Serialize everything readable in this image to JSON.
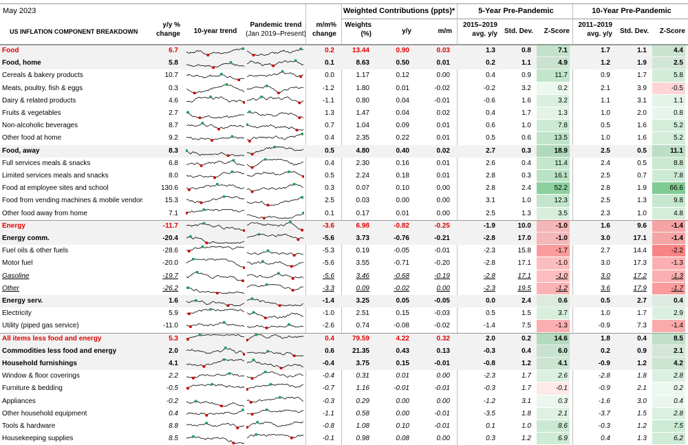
{
  "header": {
    "period": "May 2023",
    "group_weighted": "Weighted Contributions (ppts)*",
    "group_5y": "5-Year Pre-Pandemic",
    "group_10y": "10-Year Pre-Pandemic",
    "col_component": "US INFLATION COMPONENT BREAKDOWN",
    "col_yy": [
      "y/y %",
      "change"
    ],
    "col_trend10": "10-year trend",
    "col_pandemic": [
      "Pandemic trend",
      "(Jan 2019–Present)"
    ],
    "col_mm": [
      "m/m%",
      "change"
    ],
    "col_weights": [
      "Weights",
      "(%)"
    ],
    "col_wyy": "y/y",
    "col_wmm": "m/m",
    "col_5avg": [
      "2015–2019",
      "avg. y/y"
    ],
    "col_5sd": "Std. Dev.",
    "col_5z": "Z-Score",
    "col_10avg": [
      "2011–2019",
      "avg. y/y"
    ],
    "col_10sd": "Std. Dev.",
    "col_10z": "Z-Score"
  },
  "colors": {
    "red_text": "#e00000",
    "band": "#f2f2f2",
    "z_green": "#63be7b",
    "z_red": "#f8696b",
    "spark_red": "#d00000",
    "spark_green": "#1e9e5a"
  },
  "rows": [
    {
      "label": "Food",
      "yy": "6.7",
      "mm": "0.2",
      "w": "13.44",
      "wyy": "0.90",
      "wmm": "0.03",
      "a5": "1.3",
      "s5": "0.8",
      "z5": "7.1",
      "a10": "1.7",
      "s10": "1.1",
      "z10": "4.4",
      "style": "hred"
    },
    {
      "label": "Food, home",
      "yy": "5.8",
      "mm": "0.1",
      "w": "8.63",
      "wyy": "0.50",
      "wmm": "0.01",
      "a5": "0.2",
      "s5": "1.1",
      "z5": "4.9",
      "a10": "1.2",
      "s10": "1.9",
      "z10": "2.5",
      "style": "sub"
    },
    {
      "label": "Cereals & bakery products",
      "yy": "10.7",
      "mm": "0.0",
      "w": "1.17",
      "wyy": "0.12",
      "wmm": "0.00",
      "a5": "0.4",
      "s5": "0.9",
      "z5": "11.7",
      "a10": "0.9",
      "s10": "1.7",
      "z10": "5.8",
      "style": "n"
    },
    {
      "label": "Meats, poultry, fish & eggs",
      "yy": "0.3",
      "mm": "-1.2",
      "w": "1.80",
      "wyy": "0.01",
      "wmm": "-0.02",
      "a5": "-0.2",
      "s5": "3.2",
      "z5": "0.2",
      "a10": "2.1",
      "s10": "3.9",
      "z10": "-0.5",
      "style": "n"
    },
    {
      "label": "Dairy & related products",
      "yy": "4.6",
      "mm": "-1.1",
      "w": "0.80",
      "wyy": "0.04",
      "wmm": "-0.01",
      "a5": "-0.6",
      "s5": "1.6",
      "z5": "3.2",
      "a10": "1.1",
      "s10": "3.1",
      "z10": "1.1",
      "style": "n"
    },
    {
      "label": "Fruits & vegetables",
      "yy": "2.7",
      "mm": "1.3",
      "w": "1.47",
      "wyy": "0.04",
      "wmm": "0.02",
      "a5": "0.4",
      "s5": "1.7",
      "z5": "1.3",
      "a10": "1.0",
      "s10": "2.0",
      "z10": "0.8",
      "style": "n"
    },
    {
      "label": "Non-alcoholic beverages",
      "yy": "8.7",
      "mm": "0.7",
      "w": "1.04",
      "wyy": "0.09",
      "wmm": "0.01",
      "a5": "0.6",
      "s5": "1.0",
      "z5": "7.8",
      "a10": "0.5",
      "s10": "1.6",
      "z10": "5.2",
      "style": "n"
    },
    {
      "label": "Other food at home",
      "yy": "9.2",
      "mm": "0.4",
      "w": "2.35",
      "wyy": "0.22",
      "wmm": "0.01",
      "a5": "0.5",
      "s5": "0.6",
      "z5": "13.5",
      "a10": "1.0",
      "s10": "1.6",
      "z10": "5.2",
      "style": "n"
    },
    {
      "label": "Food, away",
      "yy": "8.3",
      "mm": "0.5",
      "w": "4.80",
      "wyy": "0.40",
      "wmm": "0.02",
      "a5": "2.7",
      "s5": "0.3",
      "z5": "18.9",
      "a10": "2.5",
      "s10": "0.5",
      "z10": "11.1",
      "style": "sub"
    },
    {
      "label": "Full services meals & snacks",
      "yy": "6.8",
      "mm": "0.4",
      "w": "2.30",
      "wyy": "0.16",
      "wmm": "0.01",
      "a5": "2.6",
      "s5": "0.4",
      "z5": "11.4",
      "a10": "2.4",
      "s10": "0.5",
      "z10": "8.8",
      "style": "n"
    },
    {
      "label": "Limited services meals and snacks",
      "yy": "8.0",
      "mm": "0.5",
      "w": "2.24",
      "wyy": "0.18",
      "wmm": "0.01",
      "a5": "2.8",
      "s5": "0.3",
      "z5": "16.1",
      "a10": "2.5",
      "s10": "0.7",
      "z10": "7.8",
      "style": "n"
    },
    {
      "label": "Food at employee sites and school",
      "yy": "130.6",
      "mm": "0.3",
      "w": "0.07",
      "wyy": "0.10",
      "wmm": "0.00",
      "a5": "2.8",
      "s5": "2.4",
      "z5": "52.2",
      "a10": "2.8",
      "s10": "1.9",
      "z10": "66.6",
      "style": "n"
    },
    {
      "label": "Food from vending machines & mobile vendors",
      "yy": "15.3",
      "mm": "2.5",
      "w": "0.03",
      "wyy": "0.00",
      "wmm": "0.00",
      "a5": "3.1",
      "s5": "1.0",
      "z5": "12.3",
      "a10": "2.5",
      "s10": "1.3",
      "z10": "9.8",
      "style": "n"
    },
    {
      "label": "Other food away from home",
      "yy": "7.1",
      "mm": "0.1",
      "w": "0.17",
      "wyy": "0.01",
      "wmm": "0.00",
      "a5": "2.5",
      "s5": "1.3",
      "z5": "3.5",
      "a10": "2.3",
      "s10": "1.0",
      "z10": "4.8",
      "style": "n"
    },
    {
      "label": "Energy",
      "yy": "-11.7",
      "mm": "-3.6",
      "w": "6.98",
      "wyy": "-0.82",
      "wmm": "-0.25",
      "a5": "-1.9",
      "s5": "10.0",
      "z5": "-1.0",
      "a10": "1.6",
      "s10": "9.6",
      "z10": "-1.4",
      "style": "hred"
    },
    {
      "label": "Energy comm.",
      "yy": "-20.4",
      "mm": "-5.6",
      "w": "3.73",
      "wyy": "-0.76",
      "wmm": "-0.21",
      "a5": "-2.8",
      "s5": "17.0",
      "z5": "-1.0",
      "a10": "3.0",
      "s10": "17.1",
      "z10": "-1.4",
      "style": "sub"
    },
    {
      "label": "Fuel oils & other fuels",
      "yy": "-28.6",
      "mm": "-5.3",
      "w": "0.19",
      "wyy": "-0.05",
      "wmm": "-0.01",
      "a5": "-2.3",
      "s5": "15.8",
      "z5": "-1.7",
      "a10": "2.7",
      "s10": "14.4",
      "z10": "-2.2",
      "style": "n"
    },
    {
      "label": "Motor fuel",
      "yy": "-20.0",
      "mm": "-5.6",
      "w": "3.55",
      "wyy": "-0.71",
      "wmm": "-0.20",
      "a5": "-2.8",
      "s5": "17.1",
      "z5": "-1.0",
      "a10": "3.0",
      "s10": "17.3",
      "z10": "-1.3",
      "style": "n"
    },
    {
      "label": "Gasoline",
      "yy": "-19.7",
      "mm": "-5.6",
      "w": "3.46",
      "wyy": "-0.68",
      "wmm": "-0.19",
      "a5": "-2.8",
      "s5": "17.1",
      "z5": "-1.0",
      "a10": "3.0",
      "s10": "17.2",
      "z10": "-1.3",
      "style": "iu"
    },
    {
      "label": "Other",
      "yy": "-26.2",
      "mm": "-3.3",
      "w": "0.09",
      "wyy": "-0.02",
      "wmm": "0.00",
      "a5": "-2.3",
      "s5": "19.5",
      "z5": "-1.2",
      "a10": "3.6",
      "s10": "17.9",
      "z10": "-1.7",
      "style": "iu"
    },
    {
      "label": "Energy serv.",
      "yy": "1.6",
      "mm": "-1.4",
      "w": "3.25",
      "wyy": "0.05",
      "wmm": "-0.05",
      "a5": "0.0",
      "s5": "2.4",
      "z5": "0.6",
      "a10": "0.5",
      "s10": "2.7",
      "z10": "0.4",
      "style": "sub"
    },
    {
      "label": "Electricity",
      "yy": "5.9",
      "mm": "-1.0",
      "w": "2.51",
      "wyy": "0.15",
      "wmm": "-0.03",
      "a5": "0.5",
      "s5": "1.5",
      "z5": "3.7",
      "a10": "1.0",
      "s10": "1.7",
      "z10": "2.9",
      "style": "n"
    },
    {
      "label": "Utility (piped gas service)",
      "yy": "-11.0",
      "mm": "-2.6",
      "w": "0.74",
      "wyy": "-0.08",
      "wmm": "-0.02",
      "a5": "-1.4",
      "s5": "7.5",
      "z5": "-1.3",
      "a10": "-0.9",
      "s10": "7.3",
      "z10": "-1.4",
      "style": "n"
    },
    {
      "label": "All items less food and energy",
      "yy": "5.3",
      "mm": "0.4",
      "w": "79.59",
      "wyy": "4.22",
      "wmm": "0.32",
      "a5": "2.0",
      "s5": "0.2",
      "z5": "14.6",
      "a10": "1.8",
      "s10": "0.4",
      "z10": "8.5",
      "style": "hred"
    },
    {
      "label": "Commodities less food and energy",
      "yy": "2.0",
      "mm": "0.6",
      "w": "21.35",
      "wyy": "0.43",
      "wmm": "0.13",
      "a5": "-0.3",
      "s5": "0.4",
      "z5": "6.0",
      "a10": "0.2",
      "s10": "0.9",
      "z10": "2.1",
      "style": "sub"
    },
    {
      "label": "Household furnishings",
      "yy": "4.1",
      "mm": "-0.4",
      "w": "3.75",
      "wyy": "0.15",
      "wmm": "-0.01",
      "a5": "-0.8",
      "s5": "1.2",
      "z5": "4.1",
      "a10": "-0.9",
      "s10": "1.2",
      "z10": "4.2",
      "style": "sub"
    },
    {
      "label": "Window & floor coverings",
      "yy": "2.2",
      "mm": "-0.4",
      "w": "0.31",
      "wyy": "0.01",
      "wmm": "0.00",
      "a5": "-2.3",
      "s5": "1.7",
      "z5": "2.6",
      "a10": "-2.8",
      "s10": "1.8",
      "z10": "2.8",
      "style": "i"
    },
    {
      "label": "Furniture & bedding",
      "yy": "-0.5",
      "mm": "-0.7",
      "w": "1.16",
      "wyy": "-0.01",
      "wmm": "-0.01",
      "a5": "-0.3",
      "s5": "1.7",
      "z5": "-0.1",
      "a10": "-0.9",
      "s10": "2.1",
      "z10": "0.2",
      "style": "i"
    },
    {
      "label": "Appliances",
      "yy": "-0.2",
      "mm": "-0.3",
      "w": "0.29",
      "wyy": "0.00",
      "wmm": "0.00",
      "a5": "-1.2",
      "s5": "3.1",
      "z5": "0.3",
      "a10": "-1.6",
      "s10": "3.0",
      "z10": "0.4",
      "style": "i"
    },
    {
      "label": "Other household equipment",
      "yy": "0.4",
      "mm": "-1.1",
      "w": "0.58",
      "wyy": "0.00",
      "wmm": "-0.01",
      "a5": "-3.5",
      "s5": "1.8",
      "z5": "2.1",
      "a10": "-3.7",
      "s10": "1.5",
      "z10": "2.8",
      "style": "i"
    },
    {
      "label": "Tools & hardware",
      "yy": "8.8",
      "mm": "-0.8",
      "w": "1.08",
      "wyy": "0.10",
      "wmm": "-0.01",
      "a5": "0.1",
      "s5": "1.0",
      "z5": "8.6",
      "a10": "-0.3",
      "s10": "1.2",
      "z10": "7.5",
      "style": "i"
    },
    {
      "label": "Housekeeping supplies",
      "yy": "8.5",
      "mm": "-0.1",
      "w": "0.98",
      "wyy": "0.08",
      "wmm": "0.00",
      "a5": "0.3",
      "s5": "1.2",
      "z5": "6.9",
      "a10": "0.4",
      "s10": "1.3",
      "z10": "6.2",
      "style": "i"
    }
  ]
}
